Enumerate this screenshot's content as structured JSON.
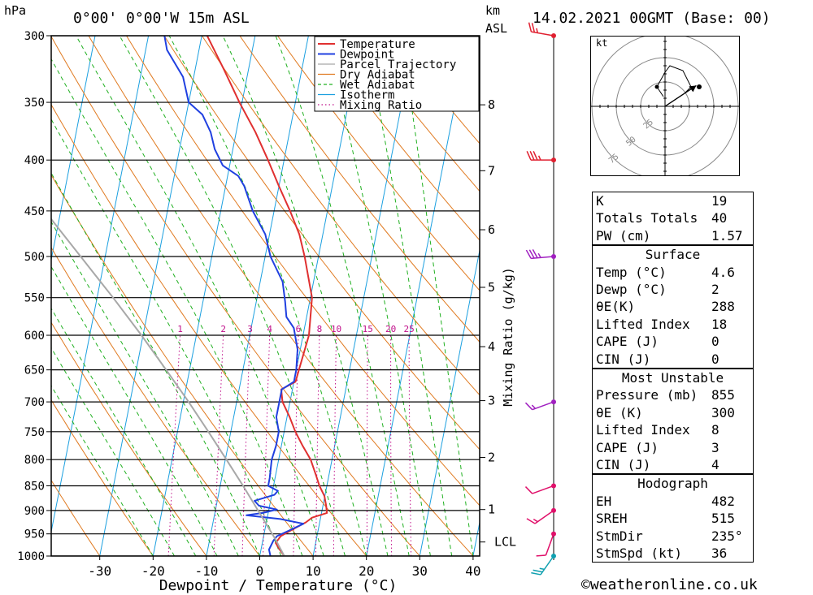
{
  "header": {
    "left_unit": "hPa",
    "location": "0°00' 0°00'W 15m ASL",
    "km_label": "km",
    "asl_label": "ASL",
    "datetime": "14.02.2021 00GMT (Base: 00)"
  },
  "chart_data": {
    "type": "line",
    "title": "",
    "xlabel": "Dewpoint / Temperature (°C)",
    "ylabel": "hPa",
    "xlim": [
      -40,
      40
    ],
    "pressure_range": [
      1000,
      300
    ],
    "x_ticks": [
      "-30",
      "-20",
      "-10",
      "0",
      "10",
      "20",
      "30",
      "40"
    ],
    "pressure_ticks": [
      "300",
      "350",
      "400",
      "450",
      "500",
      "550",
      "600",
      "650",
      "700",
      "750",
      "800",
      "850",
      "900",
      "950",
      "1000"
    ],
    "km_ticks": [
      {
        "label": "8",
        "p": 352
      },
      {
        "label": "7",
        "p": 410
      },
      {
        "label": "6",
        "p": 470
      },
      {
        "label": "5",
        "p": 537
      },
      {
        "label": "4",
        "p": 616
      },
      {
        "label": "3",
        "p": 698
      },
      {
        "label": "2",
        "p": 796
      },
      {
        "label": "1",
        "p": 898
      },
      {
        "label": "LCL",
        "p": 968
      }
    ],
    "mixing_ratio_axis_label": "Mixing Ratio (g/kg)",
    "mixing_ratio_labels": [
      "1",
      "2",
      "3",
      "4",
      "6",
      "8",
      "10",
      "15",
      "20",
      "25"
    ],
    "legend": [
      {
        "label": "Temperature",
        "color": "#e03030"
      },
      {
        "label": "Dewpoint",
        "color": "#2040e0"
      },
      {
        "label": "Parcel Trajectory",
        "color": "#a8a8a8"
      },
      {
        "label": "Dry Adiabat",
        "color": "#e07a20"
      },
      {
        "label": "Wet Adiabat",
        "color": "#20b020"
      },
      {
        "label": "Isotherm",
        "color": "#1ca0e0"
      },
      {
        "label": "Mixing Ratio",
        "color": "#c0108a"
      }
    ],
    "legend_position": "top-right",
    "series": [
      {
        "name": "Temperature",
        "color": "#e03030",
        "points": [
          {
            "p": 1000,
            "t": 4.6
          },
          {
            "p": 985,
            "t": 3.5
          },
          {
            "p": 970,
            "t": 2.5
          },
          {
            "p": 955,
            "t": 3.2
          },
          {
            "p": 940,
            "t": 5.2
          },
          {
            "p": 925,
            "t": 7.4
          },
          {
            "p": 915,
            "t": 8.4
          },
          {
            "p": 905,
            "t": 11.0
          },
          {
            "p": 890,
            "t": 10.6
          },
          {
            "p": 870,
            "t": 9.9
          },
          {
            "p": 850,
            "t": 8.6
          },
          {
            "p": 830,
            "t": 7.6
          },
          {
            "p": 800,
            "t": 6.0
          },
          {
            "p": 775,
            "t": 4.0
          },
          {
            "p": 750,
            "t": 2.1
          },
          {
            "p": 725,
            "t": 0.5
          },
          {
            "p": 700,
            "t": -1.4
          },
          {
            "p": 680,
            "t": -2.1
          },
          {
            "p": 668,
            "t": 0.3
          },
          {
            "p": 650,
            "t": 0.5
          },
          {
            "p": 600,
            "t": 1.1
          },
          {
            "p": 550,
            "t": 0.3
          },
          {
            "p": 500,
            "t": -2.6
          },
          {
            "p": 475,
            "t": -4.4
          },
          {
            "p": 450,
            "t": -7.0
          },
          {
            "p": 425,
            "t": -10.0
          },
          {
            "p": 400,
            "t": -13.0
          },
          {
            "p": 375,
            "t": -16.4
          },
          {
            "p": 350,
            "t": -20.5
          },
          {
            "p": 325,
            "t": -24.5
          },
          {
            "p": 300,
            "t": -29.0
          }
        ]
      },
      {
        "name": "Dewpoint",
        "color": "#2040e0",
        "points": [
          {
            "p": 1000,
            "t": 2.0
          },
          {
            "p": 985,
            "t": 1.5
          },
          {
            "p": 965,
            "t": 2.0
          },
          {
            "p": 955,
            "t": 2.5
          },
          {
            "p": 940,
            "t": 5.0
          },
          {
            "p": 928,
            "t": 7.0
          },
          {
            "p": 918,
            "t": 2.5
          },
          {
            "p": 910,
            "t": -4.0
          },
          {
            "p": 905,
            "t": -1.0
          },
          {
            "p": 898,
            "t": 1.5
          },
          {
            "p": 890,
            "t": -2.0
          },
          {
            "p": 880,
            "t": -3.0
          },
          {
            "p": 868,
            "t": 0.5
          },
          {
            "p": 860,
            "t": 1.0
          },
          {
            "p": 850,
            "t": -1.0
          },
          {
            "p": 835,
            "t": -1.0
          },
          {
            "p": 800,
            "t": -1.3
          },
          {
            "p": 775,
            "t": -1.0
          },
          {
            "p": 750,
            "t": -1.0
          },
          {
            "p": 725,
            "t": -2.0
          },
          {
            "p": 700,
            "t": -2.0
          },
          {
            "p": 680,
            "t": -2.0
          },
          {
            "p": 668,
            "t": 0.0
          },
          {
            "p": 650,
            "t": 0.0
          },
          {
            "p": 620,
            "t": -0.5
          },
          {
            "p": 590,
            "t": -2.0
          },
          {
            "p": 575,
            "t": -3.8
          },
          {
            "p": 555,
            "t": -4.6
          },
          {
            "p": 530,
            "t": -5.8
          },
          {
            "p": 500,
            "t": -9.0
          },
          {
            "p": 475,
            "t": -10.8
          },
          {
            "p": 450,
            "t": -14.0
          },
          {
            "p": 425,
            "t": -16.5
          },
          {
            "p": 415,
            "t": -18.0
          },
          {
            "p": 405,
            "t": -21.3
          },
          {
            "p": 390,
            "t": -23.4
          },
          {
            "p": 375,
            "t": -24.8
          },
          {
            "p": 360,
            "t": -27.0
          },
          {
            "p": 350,
            "t": -30.0
          },
          {
            "p": 330,
            "t": -32.0
          },
          {
            "p": 310,
            "t": -36.0
          },
          {
            "p": 300,
            "t": -37.0
          }
        ]
      },
      {
        "name": "Parcel Trajectory",
        "color": "#a8a8a8",
        "points": [
          {
            "p": 1000,
            "t": 4.6
          },
          {
            "p": 960,
            "t": 2.2
          },
          {
            "p": 900,
            "t": -2.0
          },
          {
            "p": 850,
            "t": -5.7
          },
          {
            "p": 800,
            "t": -9.8
          },
          {
            "p": 750,
            "t": -14.2
          },
          {
            "p": 700,
            "t": -19.0
          },
          {
            "p": 650,
            "t": -24.4
          },
          {
            "p": 600,
            "t": -30.3
          },
          {
            "p": 550,
            "t": -37.0
          },
          {
            "p": 500,
            "t": -44.6
          },
          {
            "p": 450,
            "t": -53.0
          },
          {
            "p": 400,
            "t": -62.5
          },
          {
            "p": 350,
            "t": -73.0
          },
          {
            "p": 300,
            "t": -85.0
          }
        ]
      }
    ],
    "wind_barbs": [
      {
        "p": 1000,
        "speed_kt": 25,
        "dir_deg": 215
      },
      {
        "p": 950,
        "speed_kt": 10,
        "dir_deg": 200
      },
      {
        "p": 900,
        "speed_kt": 15,
        "dir_deg": 235
      },
      {
        "p": 850,
        "speed_kt": 10,
        "dir_deg": 250
      },
      {
        "p": 700,
        "speed_kt": 15,
        "dir_deg": 250
      },
      {
        "p": 500,
        "speed_kt": 35,
        "dir_deg": 265
      },
      {
        "p": 400,
        "speed_kt": 35,
        "dir_deg": 270
      },
      {
        "p": 300,
        "speed_kt": 25,
        "dir_deg": 280
      }
    ],
    "hodograph": {
      "unit_label": "kt",
      "ring_labels": [
        "25",
        "50",
        "75"
      ],
      "points": [
        {
          "u": 0,
          "v": 0
        },
        {
          "u": 12,
          "v": 8
        },
        {
          "u": 16,
          "v": 12
        },
        {
          "u": 11,
          "v": 22
        },
        {
          "u": 3,
          "v": 25
        },
        {
          "u": 0,
          "v": 21
        },
        {
          "u": -5,
          "v": 12
        },
        {
          "u": -1,
          "v": 6
        }
      ],
      "storm_motion": {
        "u": 12,
        "v": 8
      }
    }
  },
  "stats": {
    "rows": [
      {
        "label": "K",
        "value": "19"
      },
      {
        "label": "Totals Totals",
        "value": "40"
      },
      {
        "label": "PW (cm)",
        "value": "1.57"
      },
      {
        "section": "Surface"
      },
      {
        "label": "Temp (°C)",
        "value": "4.6"
      },
      {
        "label": "Dewp (°C)",
        "value": "2"
      },
      {
        "label": "θE(K)",
        "value": "288",
        "theta": true
      },
      {
        "label": "Lifted Index",
        "value": "18"
      },
      {
        "label": "CAPE (J)",
        "value": "0"
      },
      {
        "label": "CIN (J)",
        "value": "0"
      },
      {
        "section": "Most Unstable"
      },
      {
        "label": "Pressure (mb)",
        "value": "855"
      },
      {
        "label": "θE (K)",
        "value": "300",
        "theta": true
      },
      {
        "label": "Lifted Index",
        "value": "8"
      },
      {
        "label": "CAPE (J)",
        "value": "3"
      },
      {
        "label": "CIN (J)",
        "value": "4"
      },
      {
        "section": "Hodograph"
      },
      {
        "label": "EH",
        "value": "482"
      },
      {
        "label": "SREH",
        "value": "515"
      },
      {
        "label": "StmDir",
        "value": "235°"
      },
      {
        "label": "StmSpd (kt)",
        "value": "36"
      }
    ]
  },
  "footer": {
    "copyright": "©weatheronline.co.uk"
  }
}
